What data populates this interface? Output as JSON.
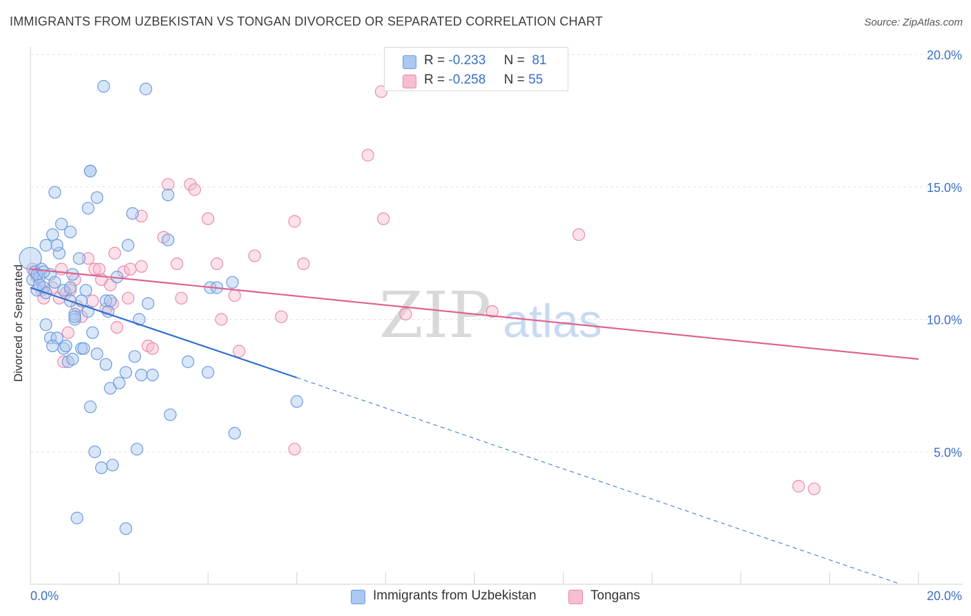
{
  "title": "IMMIGRANTS FROM UZBEKISTAN VS TONGAN DIVORCED OR SEPARATED CORRELATION CHART",
  "source": "Source: ZipAtlas.com",
  "watermark": {
    "zip": "ZIP",
    "atlas": "atlas"
  },
  "legend": {
    "r_label": "R =",
    "n_label": "N =",
    "rows": [
      {
        "r": "-0.233",
        "n": "81"
      },
      {
        "r": "-0.258",
        "n": "55"
      }
    ]
  },
  "chart_data": {
    "type": "scatter",
    "title": "IMMIGRANTS FROM UZBEKISTAN VS TONGAN DIVORCED OR SEPARATED CORRELATION CHART",
    "xlabel": "",
    "ylabel": "Divorced or Separated",
    "xlim": [
      0,
      20
    ],
    "ylim": [
      0,
      20
    ],
    "x_tick_labels": [
      "0.0%",
      "20.0%"
    ],
    "y_ticks": [
      5,
      10,
      15,
      20
    ],
    "y_tick_labels": [
      "5.0%",
      "10.0%",
      "15.0%",
      "20.0%"
    ],
    "grid": true,
    "colors": {
      "uzbekistan_fill": "#aac8f0",
      "uzbekistan_stroke": "#6b9be0",
      "uzbekistan_line": "#2f6fd0",
      "tongan_fill": "#f7bdd0",
      "tongan_stroke": "#e98aab",
      "tongan_line": "#e0608e",
      "tick_label": "#3a6fc4"
    },
    "series": [
      {
        "name": "Immigrants from Uzbekistan",
        "r": -0.233,
        "n": 81,
        "trend": {
          "x0": 0,
          "y0": 11.2,
          "x1": 6.0,
          "y1": 7.8,
          "dash_x1": 19.6,
          "dash_y1": 0.0
        },
        "points": [
          [
            0.0,
            12.3
          ],
          [
            0.05,
            11.5
          ],
          [
            0.1,
            11.8
          ],
          [
            0.15,
            11.1
          ],
          [
            0.2,
            11.6
          ],
          [
            0.25,
            11.9
          ],
          [
            0.3,
            11.2
          ],
          [
            0.35,
            11.0
          ],
          [
            0.45,
            11.7
          ],
          [
            0.55,
            11.4
          ],
          [
            0.75,
            11.1
          ],
          [
            0.9,
            11.2
          ],
          [
            0.15,
            11.7
          ],
          [
            0.3,
            11.8
          ],
          [
            1.25,
            11.1
          ],
          [
            1.15,
            10.7
          ],
          [
            1.0,
            10.2
          ],
          [
            1.3,
            10.3
          ],
          [
            0.9,
            10.7
          ],
          [
            0.35,
            12.8
          ],
          [
            0.5,
            13.2
          ],
          [
            0.65,
            12.5
          ],
          [
            0.6,
            12.8
          ],
          [
            0.7,
            13.6
          ],
          [
            0.9,
            13.3
          ],
          [
            0.55,
            14.8
          ],
          [
            1.3,
            14.2
          ],
          [
            1.5,
            14.6
          ],
          [
            1.35,
            15.6
          ],
          [
            0.95,
            11.7
          ],
          [
            1.1,
            12.3
          ],
          [
            1.0,
            10.0
          ],
          [
            0.35,
            9.8
          ],
          [
            0.45,
            9.3
          ],
          [
            0.6,
            9.3
          ],
          [
            0.75,
            8.9
          ],
          [
            0.8,
            9.0
          ],
          [
            1.15,
            8.9
          ],
          [
            1.2,
            8.9
          ],
          [
            0.85,
            8.4
          ],
          [
            0.95,
            8.5
          ],
          [
            1.4,
            9.5
          ],
          [
            1.5,
            8.7
          ],
          [
            1.7,
            8.3
          ],
          [
            1.7,
            10.7
          ],
          [
            1.75,
            10.3
          ],
          [
            1.8,
            10.7
          ],
          [
            1.95,
            11.6
          ],
          [
            2.2,
            12.8
          ],
          [
            2.3,
            14.0
          ],
          [
            2.35,
            8.6
          ],
          [
            2.15,
            8.0
          ],
          [
            2.5,
            7.9
          ],
          [
            2.75,
            7.9
          ],
          [
            2.65,
            10.6
          ],
          [
            2.45,
            10.0
          ],
          [
            3.1,
            14.7
          ],
          [
            3.1,
            13.0
          ],
          [
            2.6,
            18.7
          ],
          [
            1.65,
            18.8
          ],
          [
            1.35,
            15.6
          ],
          [
            4.05,
            11.2
          ],
          [
            4.2,
            11.2
          ],
          [
            4.55,
            11.4
          ],
          [
            3.55,
            8.4
          ],
          [
            4.0,
            8.0
          ],
          [
            4.6,
            5.7
          ],
          [
            6.0,
            6.9
          ],
          [
            1.8,
            7.4
          ],
          [
            2.0,
            7.6
          ],
          [
            1.35,
            6.7
          ],
          [
            3.15,
            6.4
          ],
          [
            1.45,
            5.0
          ],
          [
            2.4,
            5.1
          ],
          [
            1.6,
            4.4
          ],
          [
            1.85,
            4.5
          ],
          [
            1.05,
            2.5
          ],
          [
            2.15,
            2.1
          ],
          [
            0.5,
            9.0
          ],
          [
            1.0,
            10.1
          ],
          [
            0.2,
            11.3
          ]
        ]
      },
      {
        "name": "Tongans",
        "r": -0.258,
        "n": 55,
        "trend": {
          "x0": 0,
          "y0": 11.9,
          "x1": 20.0,
          "y1": 8.5
        },
        "points": [
          [
            0.05,
            11.9
          ],
          [
            0.15,
            11.6
          ],
          [
            0.25,
            11.1
          ],
          [
            0.3,
            10.8
          ],
          [
            0.5,
            11.2
          ],
          [
            0.65,
            10.8
          ],
          [
            0.8,
            11.0
          ],
          [
            0.7,
            11.9
          ],
          [
            0.9,
            11.1
          ],
          [
            1.0,
            11.5
          ],
          [
            1.05,
            10.5
          ],
          [
            1.15,
            10.1
          ],
          [
            1.3,
            12.3
          ],
          [
            1.45,
            11.9
          ],
          [
            1.4,
            10.7
          ],
          [
            1.55,
            11.9
          ],
          [
            1.6,
            11.5
          ],
          [
            1.7,
            10.4
          ],
          [
            1.8,
            11.3
          ],
          [
            1.85,
            10.6
          ],
          [
            1.9,
            12.5
          ],
          [
            1.95,
            9.7
          ],
          [
            2.1,
            11.8
          ],
          [
            2.2,
            10.8
          ],
          [
            2.25,
            11.9
          ],
          [
            2.5,
            12.0
          ],
          [
            2.5,
            13.9
          ],
          [
            2.65,
            9.0
          ],
          [
            2.75,
            8.9
          ],
          [
            3.0,
            13.1
          ],
          [
            3.1,
            15.1
          ],
          [
            3.3,
            12.1
          ],
          [
            3.4,
            10.8
          ],
          [
            3.6,
            15.1
          ],
          [
            3.7,
            14.9
          ],
          [
            4.0,
            13.8
          ],
          [
            4.2,
            12.1
          ],
          [
            4.3,
            10.0
          ],
          [
            4.6,
            10.9
          ],
          [
            4.7,
            8.8
          ],
          [
            5.05,
            12.4
          ],
          [
            5.65,
            10.1
          ],
          [
            5.95,
            13.7
          ],
          [
            6.15,
            12.1
          ],
          [
            5.95,
            5.1
          ],
          [
            7.6,
            16.2
          ],
          [
            7.9,
            18.6
          ],
          [
            7.95,
            13.8
          ],
          [
            8.45,
            10.2
          ],
          [
            10.4,
            10.3
          ],
          [
            12.35,
            13.2
          ],
          [
            17.3,
            3.7
          ],
          [
            17.65,
            3.6
          ],
          [
            0.85,
            9.5
          ],
          [
            0.75,
            8.4
          ]
        ]
      }
    ]
  }
}
